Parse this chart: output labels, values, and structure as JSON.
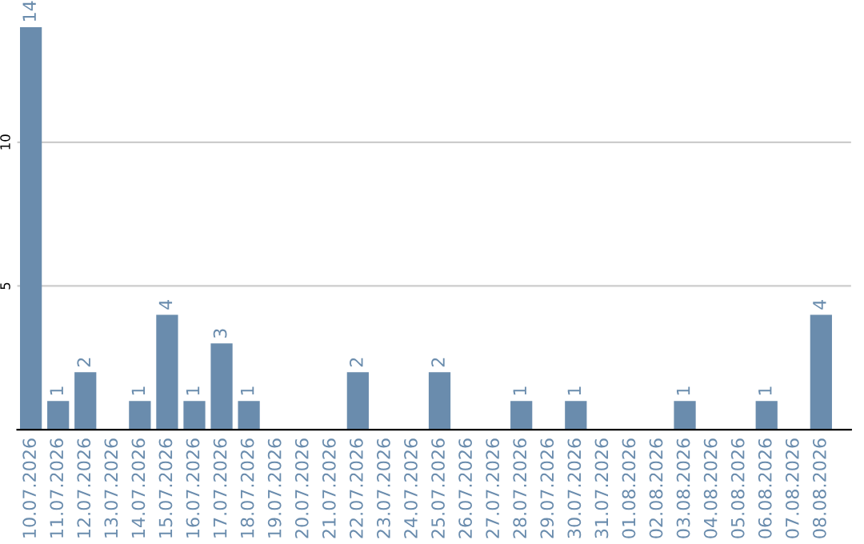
{
  "chart_data": {
    "type": "bar",
    "categories": [
      "10.07.2026",
      "11.07.2026",
      "12.07.2026",
      "13.07.2026",
      "14.07.2026",
      "15.07.2026",
      "16.07.2026",
      "17.07.2026",
      "18.07.2026",
      "19.07.2026",
      "20.07.2026",
      "21.07.2026",
      "22.07.2026",
      "23.07.2026",
      "24.07.2026",
      "25.07.2026",
      "26.07.2026",
      "27.07.2026",
      "28.07.2026",
      "29.07.2026",
      "30.07.2026",
      "31.07.2026",
      "01.08.2026",
      "02.08.2026",
      "03.08.2026",
      "04.08.2026",
      "05.08.2026",
      "06.08.2026",
      "07.08.2026",
      "08.08.2026"
    ],
    "values": [
      14,
      1,
      2,
      0,
      1,
      4,
      1,
      3,
      1,
      0,
      0,
      0,
      2,
      0,
      0,
      2,
      0,
      0,
      1,
      0,
      1,
      0,
      0,
      0,
      1,
      0,
      0,
      1,
      0,
      4
    ],
    "value_labels": [
      "14",
      "1",
      "2",
      null,
      "1",
      "4",
      "1",
      "3",
      "1",
      null,
      null,
      null,
      "2",
      null,
      null,
      "2",
      null,
      null,
      "1",
      null,
      "1",
      null,
      null,
      null,
      "1",
      null,
      null,
      "1",
      null,
      "4"
    ],
    "color": "#6a8cad",
    "ylim": [
      0,
      14
    ],
    "yticks": [
      5,
      10
    ],
    "grid": "y"
  }
}
